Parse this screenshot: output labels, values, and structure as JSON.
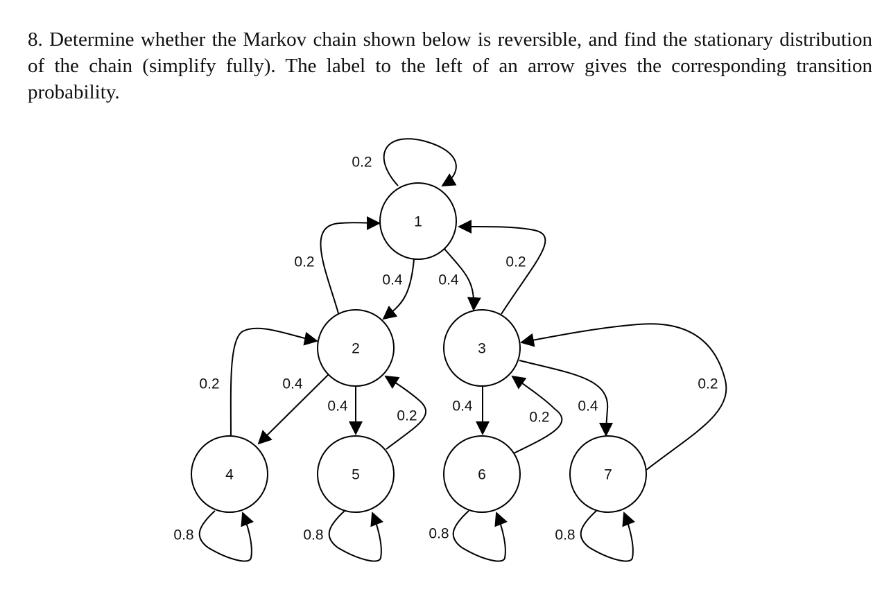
{
  "problem": {
    "text": "8. Determine whether the Markov chain shown below is reversible, and find the stationary distribution of the chain (simplify fully).  The label to the left of an arrow gives the corresponding transition probability."
  },
  "diagram": {
    "nodes": [
      {
        "id": "n1",
        "label": "1"
      },
      {
        "id": "n2",
        "label": "2"
      },
      {
        "id": "n3",
        "label": "3"
      },
      {
        "id": "n4",
        "label": "4"
      },
      {
        "id": "n5",
        "label": "5"
      },
      {
        "id": "n6",
        "label": "6"
      },
      {
        "id": "n7",
        "label": "7"
      }
    ],
    "edges": [
      {
        "from": "1",
        "to": "1",
        "label": "0.2"
      },
      {
        "from": "1",
        "to": "2",
        "label": "0.4"
      },
      {
        "from": "1",
        "to": "3",
        "label": "0.4"
      },
      {
        "from": "2",
        "to": "1",
        "label": "0.2"
      },
      {
        "from": "2",
        "to": "4",
        "label": "0.4"
      },
      {
        "from": "2",
        "to": "5",
        "label": "0.4"
      },
      {
        "from": "3",
        "to": "1",
        "label": "0.2"
      },
      {
        "from": "3",
        "to": "6",
        "label": "0.4"
      },
      {
        "from": "3",
        "to": "7",
        "label": "0.4"
      },
      {
        "from": "4",
        "to": "2",
        "label": "0.2"
      },
      {
        "from": "4",
        "to": "4",
        "label": "0.8"
      },
      {
        "from": "5",
        "to": "2",
        "label": "0.2"
      },
      {
        "from": "5",
        "to": "5",
        "label": "0.8"
      },
      {
        "from": "6",
        "to": "3",
        "label": "0.2"
      },
      {
        "from": "6",
        "to": "6",
        "label": "0.8"
      },
      {
        "from": "7",
        "to": "3",
        "label": "0.2"
      },
      {
        "from": "7",
        "to": "7",
        "label": "0.8"
      }
    ]
  }
}
